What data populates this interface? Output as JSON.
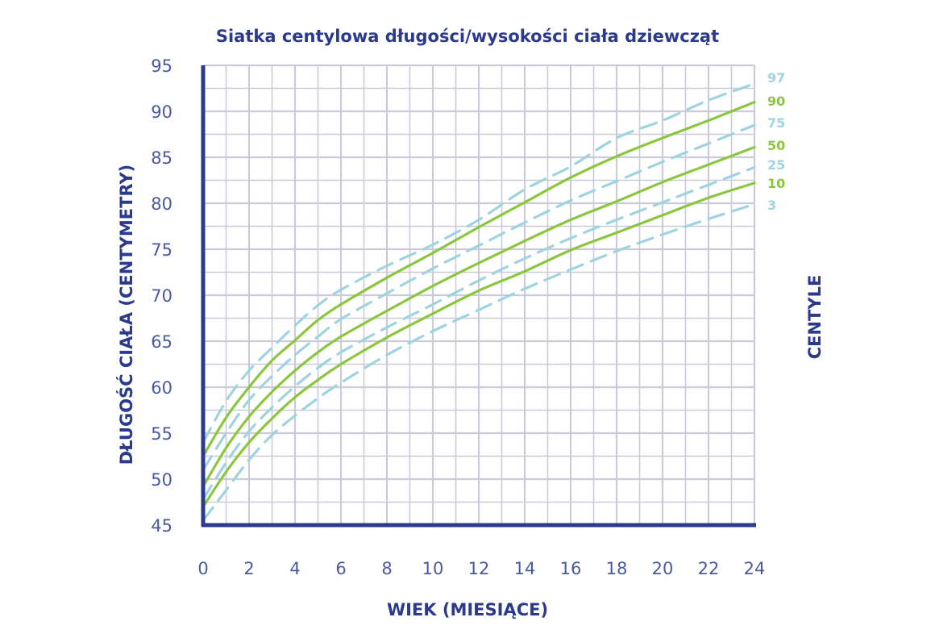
{
  "chart_data": {
    "type": "line",
    "title": "Siatka centylowa długości/wysokości ciała dziewcząt",
    "xlabel": "WIEK (MIESIĄCE)",
    "ylabel": "DŁUGOŚĆ CIAŁA (CENTYMETRY)",
    "legend_title": "CENTYLE",
    "legend_placement": "right",
    "xlim": [
      0,
      24
    ],
    "ylim": [
      45,
      95
    ],
    "grid": true,
    "x_ticks": [
      "0",
      "2",
      "4",
      "6",
      "8",
      "10",
      "12",
      "14",
      "16",
      "18",
      "20",
      "22",
      "24"
    ],
    "y_ticks": [
      "45",
      "50",
      "55",
      "60",
      "65",
      "70",
      "75",
      "80",
      "85",
      "90",
      "95"
    ],
    "x": [
      0,
      1,
      2,
      3,
      4,
      5,
      6,
      8,
      10,
      12,
      14,
      16,
      18,
      20,
      22,
      24
    ],
    "series": [
      {
        "name": "97",
        "style": "dashed",
        "color": "#9fd3e0",
        "values": [
          54.0,
          58.5,
          61.8,
          64.3,
          66.7,
          68.9,
          70.6,
          73.2,
          75.5,
          78.2,
          81.5,
          84.0,
          87.1,
          89.0,
          91.2,
          93.0
        ]
      },
      {
        "name": "90",
        "style": "solid",
        "color": "#8cc63f",
        "values": [
          52.5,
          56.7,
          60.0,
          62.9,
          65.1,
          67.3,
          69.0,
          71.9,
          74.6,
          77.4,
          80.1,
          82.8,
          85.1,
          87.1,
          89.0,
          91.0
        ]
      },
      {
        "name": "75",
        "style": "dashed",
        "color": "#9fd3e0",
        "values": [
          51.0,
          55.0,
          58.6,
          61.2,
          63.5,
          65.5,
          67.4,
          70.2,
          72.9,
          75.4,
          77.9,
          80.3,
          82.4,
          84.5,
          86.5,
          88.5
        ]
      },
      {
        "name": "50",
        "style": "solid",
        "color": "#8cc63f",
        "values": [
          49.2,
          53.4,
          56.8,
          59.5,
          61.8,
          63.8,
          65.5,
          68.3,
          71.0,
          73.5,
          75.9,
          78.2,
          80.2,
          82.3,
          84.2,
          86.1
        ]
      },
      {
        "name": "25",
        "style": "dashed",
        "color": "#9fd3e0",
        "values": [
          47.8,
          51.8,
          55.2,
          57.8,
          60.1,
          62.1,
          63.8,
          66.5,
          69.0,
          71.6,
          74.0,
          76.2,
          78.2,
          80.1,
          82.0,
          83.9
        ]
      },
      {
        "name": "10",
        "style": "solid",
        "color": "#8cc63f",
        "values": [
          47.0,
          50.8,
          54.0,
          56.6,
          58.9,
          60.8,
          62.5,
          65.4,
          68.0,
          70.5,
          72.6,
          74.9,
          76.8,
          78.7,
          80.6,
          82.2
        ]
      },
      {
        "name": "3",
        "style": "dashed",
        "color": "#9fd3e0",
        "values": [
          45.5,
          48.8,
          52.1,
          54.8,
          56.9,
          58.8,
          60.5,
          63.5,
          66.1,
          68.4,
          70.7,
          72.8,
          74.8,
          76.6,
          78.3,
          79.9
        ]
      }
    ]
  },
  "colors": {
    "axis": "#2b3a8c",
    "grid": "#c9ccd8",
    "text": "#2b3a8c",
    "tick_text": "#4a5aa0",
    "green": "#8cc63f",
    "light_blue": "#9fd3e0"
  }
}
